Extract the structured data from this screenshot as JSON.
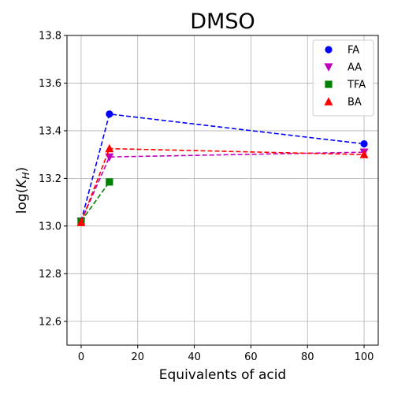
{
  "chart_data": {
    "type": "line",
    "title": "DMSO",
    "xlabel": "Equivalents of acid",
    "ylabel": "log(K_H)",
    "xlim": [
      -5,
      105
    ],
    "ylim": [
      12.5,
      13.8
    ],
    "xticks": [
      0,
      20,
      40,
      60,
      80,
      100
    ],
    "yticks": [
      12.6,
      12.8,
      13.0,
      13.2,
      13.4,
      13.6,
      13.8
    ],
    "grid": true,
    "legend_position": "top-right",
    "series": [
      {
        "name": "FA",
        "color": "#0000ff",
        "marker": "circle",
        "x": [
          0,
          10,
          100
        ],
        "y": [
          13.02,
          13.47,
          13.345
        ]
      },
      {
        "name": "AA",
        "color": "#bf00bf",
        "marker": "triangle-down",
        "x": [
          0,
          10,
          100
        ],
        "y": [
          13.02,
          13.29,
          13.31
        ]
      },
      {
        "name": "TFA",
        "color": "#008000",
        "marker": "square",
        "x": [
          0,
          10
        ],
        "y": [
          13.02,
          13.185
        ]
      },
      {
        "name": "BA",
        "color": "#ff0000",
        "marker": "triangle-up",
        "x": [
          0,
          10,
          100
        ],
        "y": [
          13.015,
          13.325,
          13.3
        ]
      }
    ]
  }
}
